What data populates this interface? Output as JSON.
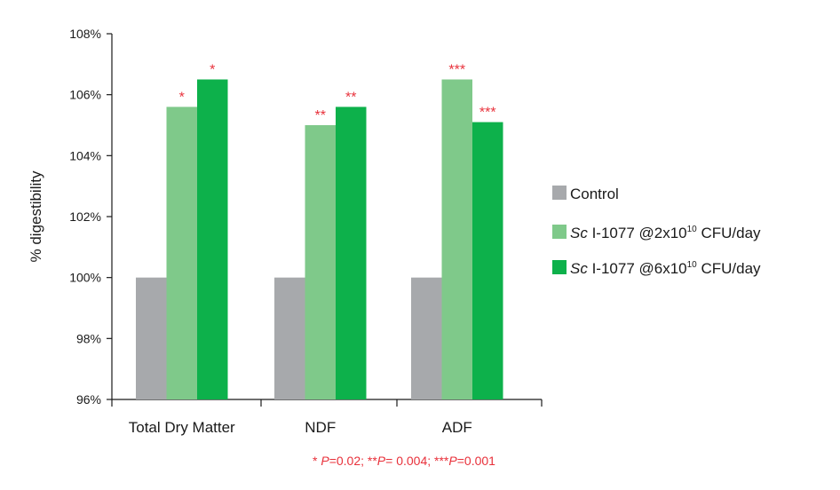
{
  "chart_data": {
    "type": "bar",
    "ylabel": "% digestibility",
    "ylim": [
      96,
      108
    ],
    "yticks": [
      96,
      98,
      100,
      102,
      104,
      106,
      108
    ],
    "ytick_labels": [
      "96%",
      "98%",
      "100%",
      "102%",
      "104%",
      "106%",
      "108%"
    ],
    "categories": [
      "Total Dry Matter",
      "NDF",
      "ADF"
    ],
    "series": [
      {
        "name": "Control",
        "color": "#a7a9ac",
        "values": [
          100,
          100,
          100
        ],
        "stars": [
          "",
          "",
          ""
        ]
      },
      {
        "name": "Sc I-1077 @2x10¹⁰ CFU/day",
        "color": "#7fc98a",
        "values": [
          105.6,
          105.0,
          106.5
        ],
        "stars": [
          "*",
          "**",
          "***"
        ]
      },
      {
        "name": "Sc I-1077 @6x10¹⁰ CFU/day",
        "color": "#0db14b",
        "values": [
          106.5,
          105.6,
          105.1
        ],
        "stars": [
          "*",
          "**",
          "***"
        ]
      }
    ],
    "legend": [
      {
        "italic": "",
        "text": "Control",
        "sup": "",
        "after": ""
      },
      {
        "italic": "Sc",
        "text": " I-1077 @2x10",
        "sup": "10",
        "after": " CFU/day"
      },
      {
        "italic": "Sc",
        "text": " I-1077 @6x10",
        "sup": "10",
        "after": " CFU/day"
      }
    ],
    "legend_position": "right",
    "grid": false,
    "footnote": [
      {
        "star": "* ",
        "p": "P",
        "val": "=0.02;  "
      },
      {
        "star": "**",
        "p": "P",
        "val": "= 0.004;  "
      },
      {
        "star": "***",
        "p": "P",
        "val": "=0.001"
      }
    ]
  }
}
